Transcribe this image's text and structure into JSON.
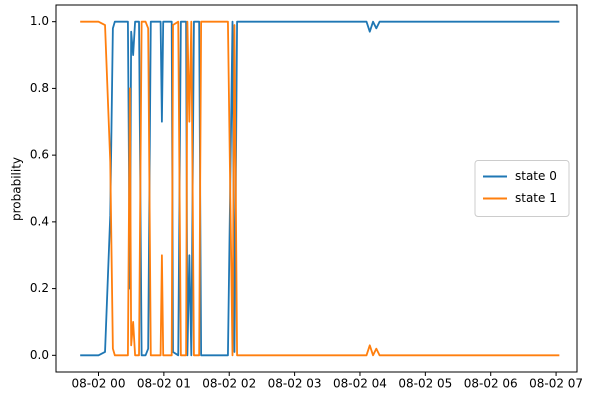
{
  "chart_data": {
    "type": "line",
    "ylabel": "probability",
    "x": [
      -0.28,
      0.0,
      0.1,
      0.18,
      0.22,
      0.25,
      0.45,
      0.48,
      0.5,
      0.53,
      0.56,
      0.62,
      0.66,
      0.72,
      0.76,
      0.8,
      0.95,
      0.97,
      0.99,
      1.12,
      1.14,
      1.22,
      1.26,
      1.34,
      1.36,
      1.39,
      1.42,
      1.46,
      1.54,
      1.57,
      1.98,
      2.05,
      2.08,
      2.12,
      3.0,
      4.1,
      4.15,
      4.2,
      4.25,
      4.3,
      5,
      6,
      7.05
    ],
    "series": [
      {
        "name": "state 0",
        "color": "#1f77b4",
        "values": [
          0,
          0,
          0.01,
          0.42,
          0.98,
          1,
          1,
          0.2,
          0.97,
          0.9,
          1,
          1,
          0,
          0,
          0.02,
          1,
          1,
          0.7,
          1,
          1,
          0.01,
          0,
          1,
          1,
          0,
          0.3,
          0,
          1,
          1,
          0,
          0,
          1,
          0.01,
          1,
          1,
          1,
          0.97,
          1,
          0.98,
          1,
          1,
          1,
          1
        ]
      },
      {
        "name": "state 1",
        "color": "#ff7f0e",
        "values": [
          1,
          1,
          0.99,
          0.58,
          0.02,
          0,
          0,
          0.8,
          0.03,
          0.1,
          0,
          0,
          1,
          1,
          0.98,
          0,
          0,
          0.3,
          0,
          0,
          0.99,
          1,
          0,
          0,
          1,
          0.7,
          1,
          0,
          0,
          1,
          1,
          0,
          0.99,
          0,
          0,
          0,
          0.03,
          0,
          0.02,
          0,
          0,
          0,
          0
        ]
      }
    ],
    "xlim": [
      -0.65,
      7.32
    ],
    "xticks": [
      {
        "value": 0,
        "label": "08-02 00"
      },
      {
        "value": 1,
        "label": "08-02 01"
      },
      {
        "value": 2,
        "label": "08-02 02"
      },
      {
        "value": 3,
        "label": "08-02 03"
      },
      {
        "value": 4,
        "label": "08-02 04"
      },
      {
        "value": 5,
        "label": "08-02 05"
      },
      {
        "value": 6,
        "label": "08-02 06"
      },
      {
        "value": 7,
        "label": "08-02 07"
      }
    ],
    "ylim": [
      -0.05,
      1.05
    ],
    "yticks": [
      {
        "value": 0,
        "label": "0.0"
      },
      {
        "value": 0.2,
        "label": "0.2"
      },
      {
        "value": 0.4,
        "label": "0.4"
      },
      {
        "value": 0.6,
        "label": "0.6"
      },
      {
        "value": 0.8,
        "label": "0.8"
      },
      {
        "value": 1,
        "label": "1.0"
      }
    ],
    "grid": false,
    "legend": "right"
  }
}
